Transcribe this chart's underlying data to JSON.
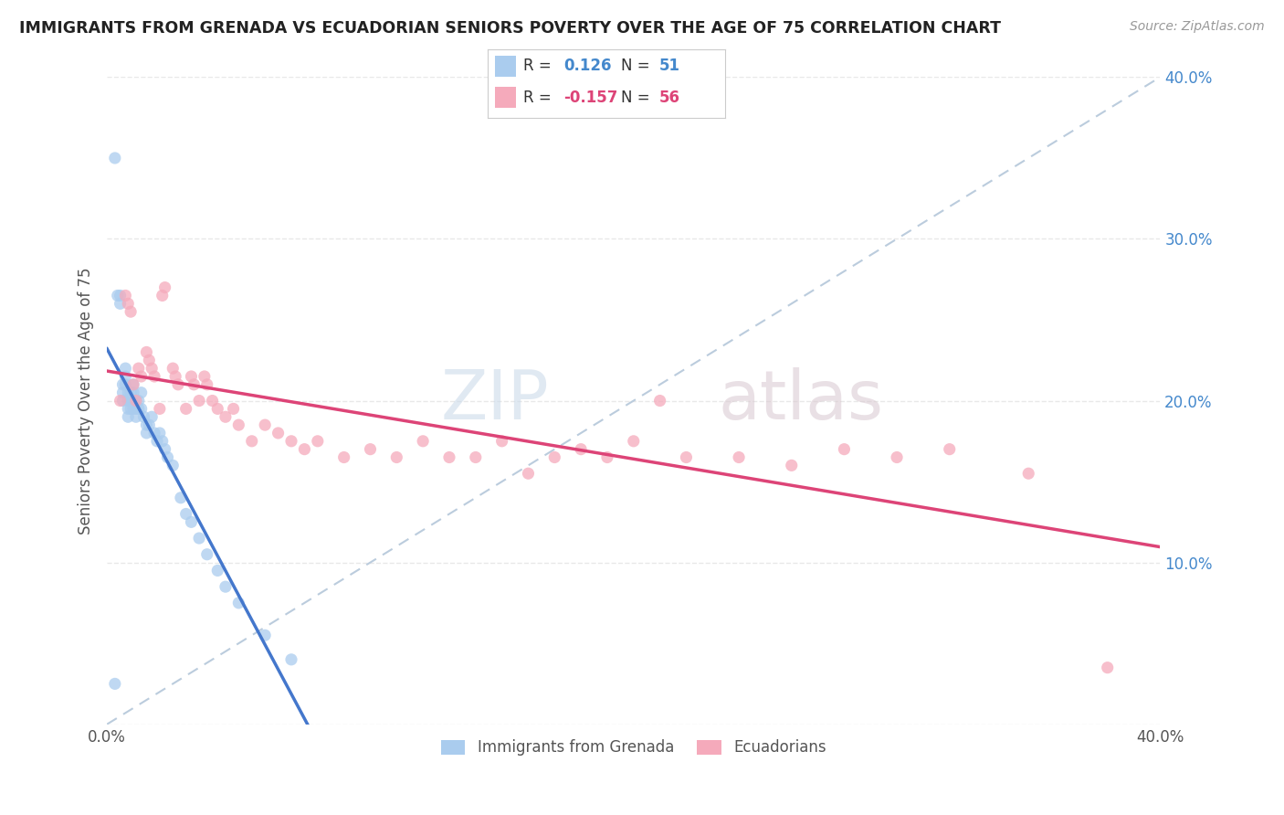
{
  "title": "IMMIGRANTS FROM GRENADA VS ECUADORIAN SENIORS POVERTY OVER THE AGE OF 75 CORRELATION CHART",
  "source": "Source: ZipAtlas.com",
  "ylabel": "Seniors Poverty Over the Age of 75",
  "xlim": [
    0.0,
    0.4
  ],
  "ylim": [
    0.0,
    0.4
  ],
  "x_ticks": [
    0.0,
    0.1,
    0.2,
    0.3,
    0.4
  ],
  "y_ticks": [
    0.0,
    0.1,
    0.2,
    0.3,
    0.4
  ],
  "background_color": "#ffffff",
  "grid_color": "#e8e8e8",
  "watermark": "ZIPatlas",
  "series": [
    {
      "label": "Immigrants from Grenada",
      "R": 0.126,
      "N": 51,
      "color": "#aaccee",
      "line_color": "#4477cc",
      "x": [
        0.003,
        0.004,
        0.005,
        0.005,
        0.006,
        0.006,
        0.006,
        0.007,
        0.007,
        0.007,
        0.008,
        0.008,
        0.008,
        0.008,
        0.009,
        0.009,
        0.009,
        0.01,
        0.01,
        0.01,
        0.01,
        0.011,
        0.011,
        0.011,
        0.012,
        0.012,
        0.013,
        0.013,
        0.014,
        0.015,
        0.015,
        0.016,
        0.017,
        0.018,
        0.019,
        0.02,
        0.021,
        0.022,
        0.023,
        0.025,
        0.028,
        0.03,
        0.032,
        0.035,
        0.038,
        0.042,
        0.045,
        0.05,
        0.06,
        0.07,
        0.003
      ],
      "y": [
        0.35,
        0.265,
        0.265,
        0.26,
        0.21,
        0.205,
        0.2,
        0.22,
        0.215,
        0.21,
        0.205,
        0.2,
        0.195,
        0.19,
        0.205,
        0.2,
        0.195,
        0.21,
        0.205,
        0.2,
        0.195,
        0.2,
        0.195,
        0.19,
        0.2,
        0.195,
        0.205,
        0.195,
        0.19,
        0.185,
        0.18,
        0.185,
        0.19,
        0.18,
        0.175,
        0.18,
        0.175,
        0.17,
        0.165,
        0.16,
        0.14,
        0.13,
        0.125,
        0.115,
        0.105,
        0.095,
        0.085,
        0.075,
        0.055,
        0.04,
        0.025
      ]
    },
    {
      "label": "Ecuadorians",
      "R": -0.157,
      "N": 56,
      "color": "#f5aabb",
      "line_color": "#dd4477",
      "x": [
        0.005,
        0.007,
        0.008,
        0.009,
        0.01,
        0.011,
        0.012,
        0.013,
        0.015,
        0.016,
        0.017,
        0.018,
        0.02,
        0.021,
        0.022,
        0.025,
        0.026,
        0.027,
        0.03,
        0.032,
        0.033,
        0.035,
        0.037,
        0.038,
        0.04,
        0.042,
        0.045,
        0.048,
        0.05,
        0.055,
        0.06,
        0.065,
        0.07,
        0.075,
        0.08,
        0.09,
        0.1,
        0.11,
        0.12,
        0.13,
        0.14,
        0.15,
        0.16,
        0.17,
        0.18,
        0.19,
        0.2,
        0.21,
        0.22,
        0.24,
        0.26,
        0.28,
        0.3,
        0.32,
        0.35,
        0.38
      ],
      "y": [
        0.2,
        0.265,
        0.26,
        0.255,
        0.21,
        0.2,
        0.22,
        0.215,
        0.23,
        0.225,
        0.22,
        0.215,
        0.195,
        0.265,
        0.27,
        0.22,
        0.215,
        0.21,
        0.195,
        0.215,
        0.21,
        0.2,
        0.215,
        0.21,
        0.2,
        0.195,
        0.19,
        0.195,
        0.185,
        0.175,
        0.185,
        0.18,
        0.175,
        0.17,
        0.175,
        0.165,
        0.17,
        0.165,
        0.175,
        0.165,
        0.165,
        0.175,
        0.155,
        0.165,
        0.17,
        0.165,
        0.175,
        0.2,
        0.165,
        0.165,
        0.16,
        0.17,
        0.165,
        0.17,
        0.155,
        0.035
      ]
    }
  ]
}
